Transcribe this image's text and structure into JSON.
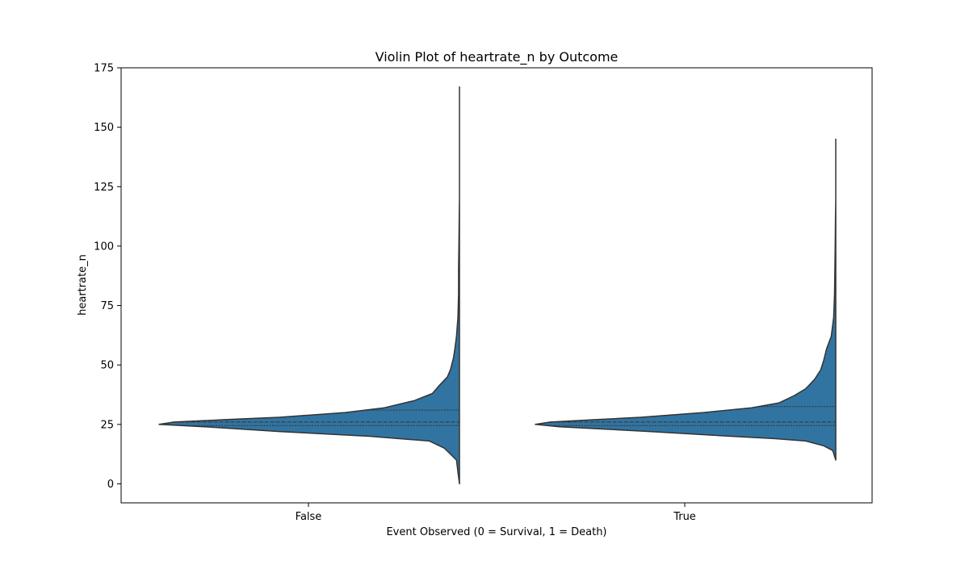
{
  "chart_data": {
    "type": "violin",
    "title": "Violin Plot of heartrate_n by Outcome",
    "xlabel": "Event Observed (0 = Survival, 1 = Death)",
    "ylabel": "heartrate_n",
    "categories": [
      "False",
      "True"
    ],
    "ylim": [
      -8,
      175
    ],
    "yticks": [
      0,
      25,
      50,
      75,
      100,
      125,
      150,
      175
    ],
    "split": true,
    "color": "#3274a1",
    "edge_color": "#333333",
    "grid": false,
    "legend": "none",
    "violins": [
      {
        "category": "False",
        "min": 0,
        "max": 167,
        "quartiles": [
          24.5,
          26,
          31
        ],
        "density": [
          [
            0,
            0.0
          ],
          [
            5,
            0.005
          ],
          [
            10,
            0.01
          ],
          [
            15,
            0.05
          ],
          [
            18,
            0.1
          ],
          [
            20,
            0.3
          ],
          [
            22,
            0.6
          ],
          [
            24,
            0.85
          ],
          [
            25,
            1.0
          ],
          [
            26,
            0.95
          ],
          [
            27,
            0.78
          ],
          [
            28,
            0.6
          ],
          [
            30,
            0.38
          ],
          [
            32,
            0.25
          ],
          [
            35,
            0.15
          ],
          [
            38,
            0.09
          ],
          [
            41,
            0.07
          ],
          [
            45,
            0.04
          ],
          [
            48,
            0.03
          ],
          [
            53,
            0.02
          ],
          [
            57,
            0.015
          ],
          [
            62,
            0.01
          ],
          [
            70,
            0.005
          ],
          [
            80,
            0.003
          ],
          [
            90,
            0.003
          ],
          [
            100,
            0.002
          ],
          [
            110,
            0.001
          ],
          [
            120,
            0.0
          ],
          [
            167,
            0.0
          ]
        ]
      },
      {
        "category": "True",
        "min": 10,
        "max": 145,
        "quartiles": [
          24.5,
          26,
          32.5
        ],
        "density": [
          [
            10,
            0.0
          ],
          [
            14,
            0.01
          ],
          [
            16,
            0.04
          ],
          [
            18,
            0.1
          ],
          [
            19,
            0.2
          ],
          [
            20,
            0.35
          ],
          [
            22,
            0.62
          ],
          [
            24,
            0.92
          ],
          [
            25,
            1.0
          ],
          [
            26,
            0.95
          ],
          [
            27,
            0.8
          ],
          [
            28,
            0.65
          ],
          [
            30,
            0.44
          ],
          [
            32,
            0.28
          ],
          [
            34,
            0.19
          ],
          [
            37,
            0.14
          ],
          [
            40,
            0.1
          ],
          [
            44,
            0.07
          ],
          [
            48,
            0.05
          ],
          [
            52,
            0.04
          ],
          [
            57,
            0.03
          ],
          [
            62,
            0.015
          ],
          [
            70,
            0.007
          ],
          [
            80,
            0.004
          ],
          [
            90,
            0.003
          ],
          [
            100,
            0.002
          ],
          [
            110,
            0.001
          ],
          [
            120,
            0.0
          ],
          [
            145,
            0.0
          ]
        ]
      }
    ]
  }
}
